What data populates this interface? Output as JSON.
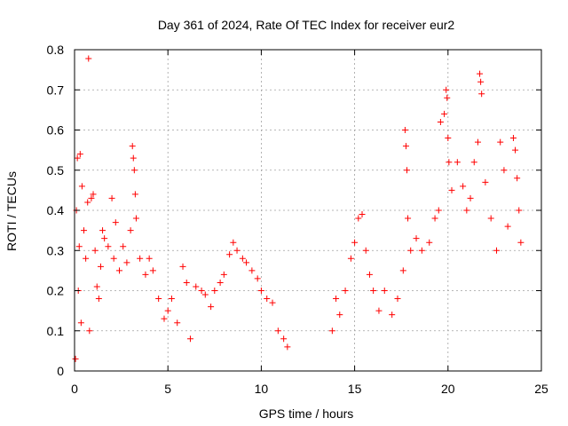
{
  "chart_data": {
    "type": "scatter",
    "title": "Day 361 of 2024, Rate Of TEC Index for receiver eur2",
    "xlabel": "GPS time / hours",
    "ylabel": "ROTI / TECUs",
    "xlim": [
      0,
      25
    ],
    "ylim": [
      0,
      0.8
    ],
    "xticks": [
      "0",
      "5",
      "10",
      "15",
      "20",
      "25"
    ],
    "yticks": [
      "0",
      "0.1",
      "0.2",
      "0.3",
      "0.4",
      "0.5",
      "0.6",
      "0.7",
      "0.8"
    ],
    "grid": true,
    "marker": "plus",
    "color": "#ff0000",
    "series": [
      {
        "points": [
          [
            0.05,
            0.03
          ],
          [
            0.1,
            0.4
          ],
          [
            0.15,
            0.53
          ],
          [
            0.2,
            0.2
          ],
          [
            0.25,
            0.31
          ],
          [
            0.3,
            0.54
          ],
          [
            0.35,
            0.12
          ],
          [
            0.4,
            0.46
          ],
          [
            0.5,
            0.35
          ],
          [
            0.6,
            0.28
          ],
          [
            0.7,
            0.42
          ],
          [
            0.75,
            0.778
          ],
          [
            0.8,
            0.1
          ],
          [
            0.9,
            0.43
          ],
          [
            1.0,
            0.44
          ],
          [
            1.1,
            0.3
          ],
          [
            1.2,
            0.21
          ],
          [
            1.3,
            0.18
          ],
          [
            1.4,
            0.26
          ],
          [
            1.5,
            0.35
          ],
          [
            1.6,
            0.33
          ],
          [
            1.8,
            0.31
          ],
          [
            2.0,
            0.43
          ],
          [
            2.1,
            0.28
          ],
          [
            2.2,
            0.37
          ],
          [
            2.4,
            0.25
          ],
          [
            2.6,
            0.31
          ],
          [
            2.8,
            0.27
          ],
          [
            3.0,
            0.35
          ],
          [
            3.1,
            0.56
          ],
          [
            3.15,
            0.53
          ],
          [
            3.2,
            0.5
          ],
          [
            3.25,
            0.44
          ],
          [
            3.3,
            0.38
          ],
          [
            3.5,
            0.28
          ],
          [
            3.8,
            0.24
          ],
          [
            4.0,
            0.28
          ],
          [
            4.2,
            0.25
          ],
          [
            4.5,
            0.18
          ],
          [
            4.8,
            0.13
          ],
          [
            5.0,
            0.15
          ],
          [
            5.2,
            0.18
          ],
          [
            5.5,
            0.12
          ],
          [
            5.8,
            0.26
          ],
          [
            6.0,
            0.22
          ],
          [
            6.2,
            0.08
          ],
          [
            6.5,
            0.21
          ],
          [
            6.8,
            0.2
          ],
          [
            7.0,
            0.19
          ],
          [
            7.3,
            0.16
          ],
          [
            7.5,
            0.2
          ],
          [
            7.8,
            0.22
          ],
          [
            8.0,
            0.24
          ],
          [
            8.3,
            0.29
          ],
          [
            8.5,
            0.32
          ],
          [
            8.7,
            0.3
          ],
          [
            9.0,
            0.28
          ],
          [
            9.2,
            0.27
          ],
          [
            9.5,
            0.25
          ],
          [
            9.8,
            0.23
          ],
          [
            10.0,
            0.2
          ],
          [
            10.3,
            0.18
          ],
          [
            10.6,
            0.17
          ],
          [
            10.9,
            0.1
          ],
          [
            11.2,
            0.08
          ],
          [
            11.4,
            0.06
          ],
          [
            13.8,
            0.1
          ],
          [
            14.0,
            0.18
          ],
          [
            14.2,
            0.14
          ],
          [
            14.5,
            0.2
          ],
          [
            14.8,
            0.28
          ],
          [
            15.0,
            0.32
          ],
          [
            15.2,
            0.38
          ],
          [
            15.4,
            0.39
          ],
          [
            15.6,
            0.3
          ],
          [
            15.8,
            0.24
          ],
          [
            16.0,
            0.2
          ],
          [
            16.3,
            0.15
          ],
          [
            16.6,
            0.2
          ],
          [
            17.0,
            0.14
          ],
          [
            17.3,
            0.18
          ],
          [
            17.6,
            0.25
          ],
          [
            17.7,
            0.6
          ],
          [
            17.75,
            0.56
          ],
          [
            17.8,
            0.5
          ],
          [
            17.85,
            0.38
          ],
          [
            18.0,
            0.3
          ],
          [
            18.3,
            0.33
          ],
          [
            18.6,
            0.3
          ],
          [
            19.0,
            0.32
          ],
          [
            19.3,
            0.38
          ],
          [
            19.5,
            0.4
          ],
          [
            19.6,
            0.62
          ],
          [
            19.8,
            0.64
          ],
          [
            19.9,
            0.7
          ],
          [
            19.95,
            0.68
          ],
          [
            20.0,
            0.58
          ],
          [
            20.05,
            0.52
          ],
          [
            20.2,
            0.45
          ],
          [
            20.5,
            0.52
          ],
          [
            20.8,
            0.46
          ],
          [
            21.0,
            0.4
          ],
          [
            21.2,
            0.43
          ],
          [
            21.4,
            0.52
          ],
          [
            21.6,
            0.57
          ],
          [
            21.7,
            0.74
          ],
          [
            21.75,
            0.72
          ],
          [
            21.8,
            0.69
          ],
          [
            22.0,
            0.47
          ],
          [
            22.3,
            0.38
          ],
          [
            22.6,
            0.3
          ],
          [
            22.8,
            0.57
          ],
          [
            23.0,
            0.5
          ],
          [
            23.2,
            0.36
          ],
          [
            23.5,
            0.58
          ],
          [
            23.6,
            0.55
          ],
          [
            23.7,
            0.48
          ],
          [
            23.8,
            0.4
          ],
          [
            23.9,
            0.32
          ]
        ]
      }
    ]
  }
}
